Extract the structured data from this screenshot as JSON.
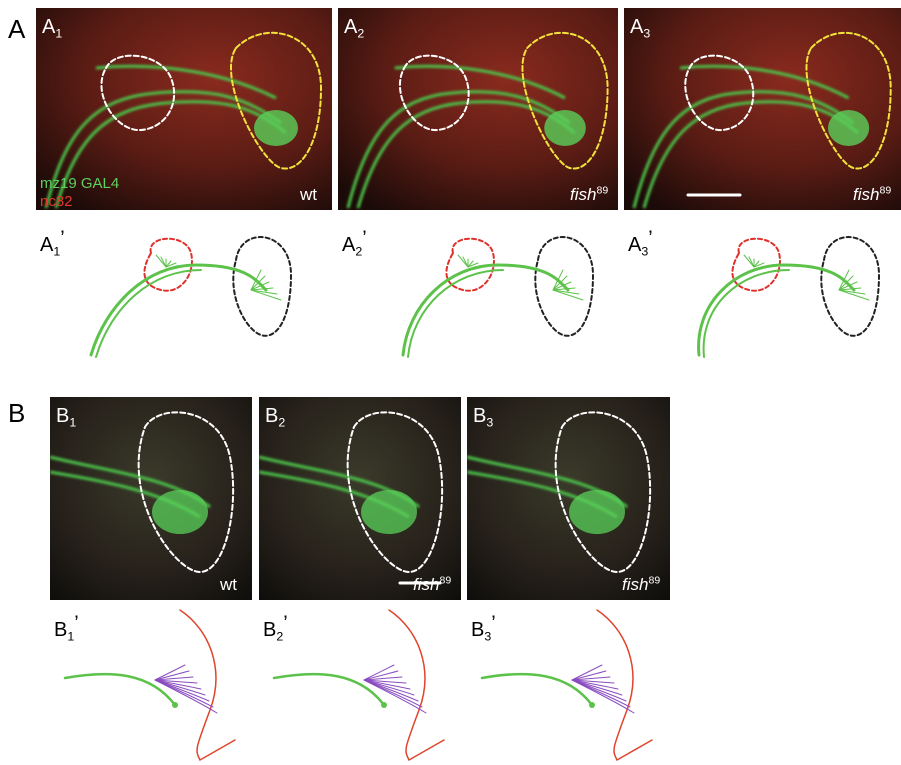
{
  "panel_a": {
    "letter": "A",
    "images": [
      {
        "label": {
          "base": "A",
          "sub": "1"
        },
        "channels": [
          "mz19 GAL4",
          "nc82"
        ],
        "genotype": {
          "base": "wt"
        }
      },
      {
        "label": {
          "base": "A",
          "sub": "2"
        },
        "genotype": {
          "base": "fish",
          "sup": "89"
        }
      },
      {
        "label": {
          "base": "A",
          "sub": "3"
        },
        "genotype": {
          "base": "fish",
          "sup": "89"
        }
      }
    ],
    "drawings": [
      {
        "base": "A",
        "sub": "1",
        "mark": "’"
      },
      {
        "base": "A",
        "sub": "2",
        "mark": "’"
      },
      {
        "base": "A",
        "sub": "3",
        "mark": "’"
      }
    ]
  },
  "panel_b": {
    "letter": "B",
    "images": [
      {
        "label": {
          "base": "B",
          "sub": "1"
        },
        "genotype": {
          "base": "wt"
        }
      },
      {
        "label": {
          "base": "B",
          "sub": "2"
        },
        "genotype": {
          "base": "fish",
          "sup": "89"
        }
      },
      {
        "label": {
          "base": "B",
          "sub": "3"
        },
        "genotype": {
          "base": "fish",
          "sup": "89"
        }
      }
    ],
    "drawings": [
      {
        "base": "B",
        "sub": "1",
        "mark": "’"
      },
      {
        "base": "B",
        "sub": "2",
        "mark": "’"
      },
      {
        "base": "B",
        "sub": "3",
        "mark": "’"
      }
    ]
  }
}
